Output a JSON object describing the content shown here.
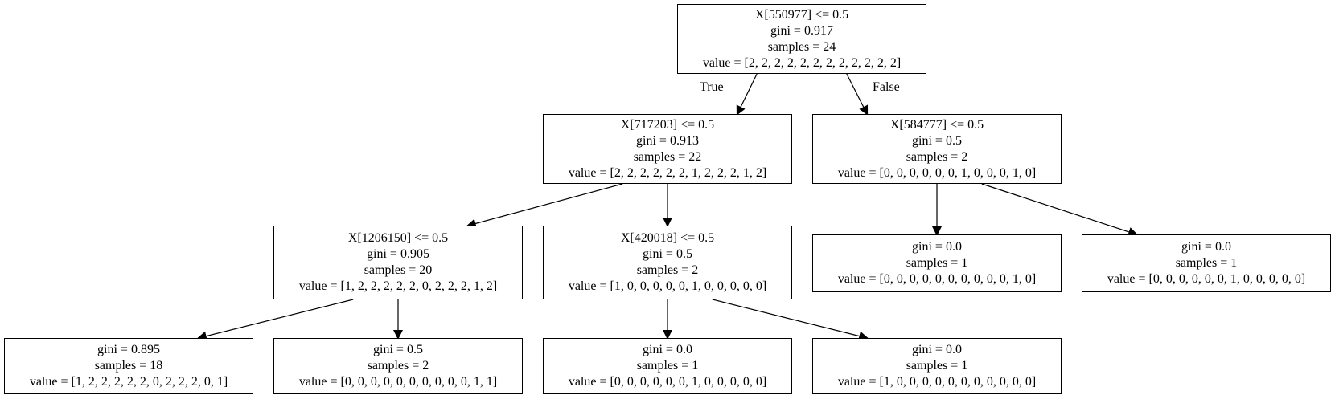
{
  "nodes": [
    {
      "id": "n0",
      "split": "X[550977] <= 0.5",
      "gini": "gini = 0.917",
      "samples": "samples = 24",
      "value": "value = [2, 2, 2, 2, 2, 2, 2, 2, 2, 2, 2, 2]"
    },
    {
      "id": "n1",
      "split": "X[717203] <= 0.5",
      "gini": "gini = 0.913",
      "samples": "samples = 22",
      "value": "value = [2, 2, 2, 2, 2, 2, 1, 2, 2, 2, 1, 2]"
    },
    {
      "id": "n2",
      "split": "X[584777] <= 0.5",
      "gini": "gini = 0.5",
      "samples": "samples = 2",
      "value": "value = [0, 0, 0, 0, 0, 0, 1, 0, 0, 0, 1, 0]"
    },
    {
      "id": "n3",
      "split": "X[1206150] <= 0.5",
      "gini": "gini = 0.905",
      "samples": "samples = 20",
      "value": "value = [1, 2, 2, 2, 2, 2, 0, 2, 2, 2, 1, 2]"
    },
    {
      "id": "n4",
      "split": "X[420018] <= 0.5",
      "gini": "gini = 0.5",
      "samples": "samples = 2",
      "value": "value = [1, 0, 0, 0, 0, 0, 1, 0, 0, 0, 0, 0]"
    },
    {
      "id": "n5",
      "split": "",
      "gini": "gini = 0.0",
      "samples": "samples = 1",
      "value": "value = [0, 0, 0, 0, 0, 0, 0, 0, 0, 0, 1, 0]"
    },
    {
      "id": "n6",
      "split": "",
      "gini": "gini = 0.0",
      "samples": "samples = 1",
      "value": "value = [0, 0, 0, 0, 0, 0, 1, 0, 0, 0, 0, 0]"
    },
    {
      "id": "n7",
      "split": "",
      "gini": "gini = 0.895",
      "samples": "samples = 18",
      "value": "value = [1, 2, 2, 2, 2, 2, 0, 2, 2, 2, 0, 1]"
    },
    {
      "id": "n8",
      "split": "",
      "gini": "gini = 0.5",
      "samples": "samples = 2",
      "value": "value = [0, 0, 0, 0, 0, 0, 0, 0, 0, 0, 1, 1]"
    },
    {
      "id": "n9",
      "split": "",
      "gini": "gini = 0.0",
      "samples": "samples = 1",
      "value": "value = [0, 0, 0, 0, 0, 0, 1, 0, 0, 0, 0, 0]"
    },
    {
      "id": "n10",
      "split": "",
      "gini": "gini = 0.0",
      "samples": "samples = 1",
      "value": "value = [1, 0, 0, 0, 0, 0, 0, 0, 0, 0, 0, 0]"
    }
  ],
  "edge_labels": {
    "true_label": "True",
    "false_label": "False"
  },
  "edges": [
    {
      "from": "n0",
      "to": "n1"
    },
    {
      "from": "n0",
      "to": "n2"
    },
    {
      "from": "n1",
      "to": "n3"
    },
    {
      "from": "n1",
      "to": "n4"
    },
    {
      "from": "n2",
      "to": "n5"
    },
    {
      "from": "n2",
      "to": "n6"
    },
    {
      "from": "n3",
      "to": "n7"
    },
    {
      "from": "n3",
      "to": "n8"
    },
    {
      "from": "n4",
      "to": "n9"
    },
    {
      "from": "n4",
      "to": "n10"
    }
  ]
}
